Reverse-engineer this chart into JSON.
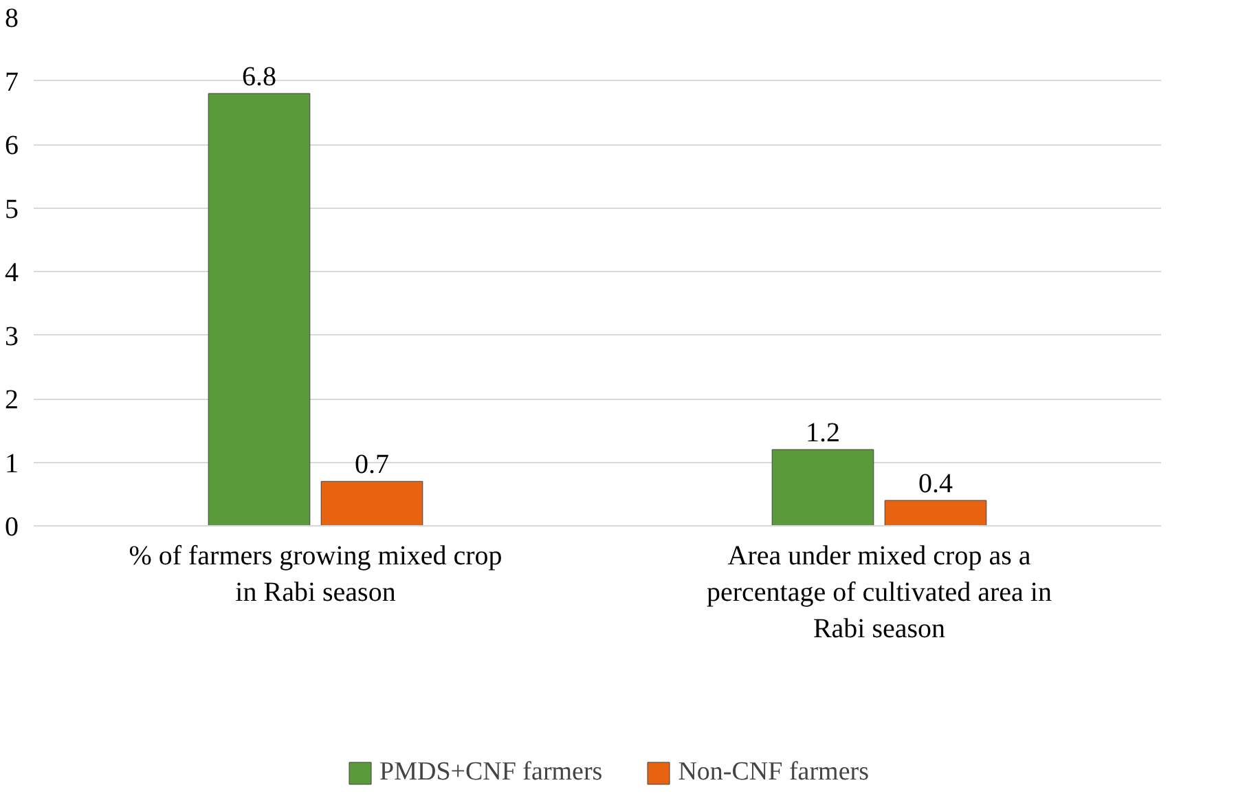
{
  "chart_data": {
    "type": "bar",
    "categories": [
      "% of farmers growing mixed crop in Rabi season",
      "Area under mixed crop as a percentage of cultivated area in Rabi season"
    ],
    "series": [
      {
        "name": "PMDS+CNF farmers",
        "color": "#5b9a3b",
        "values": [
          6.8,
          1.2
        ]
      },
      {
        "name": "Non-CNF farmers",
        "color": "#e8630f",
        "values": [
          0.7,
          0.4
        ]
      }
    ],
    "ylim": [
      0,
      8
    ],
    "yticks": [
      0,
      1,
      2,
      3,
      4,
      5,
      6,
      7,
      8
    ],
    "grid": "y",
    "legend": "bottom",
    "data_labels": true
  }
}
